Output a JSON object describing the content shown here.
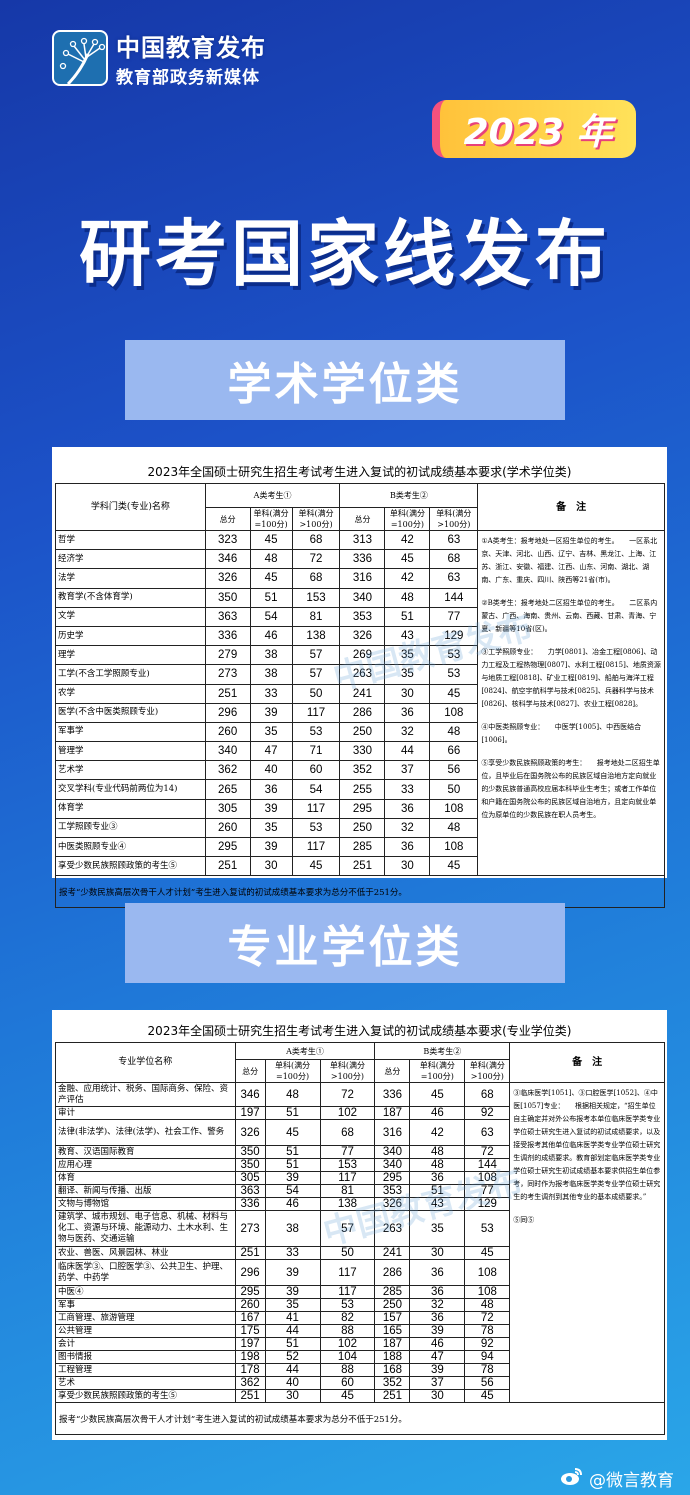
{
  "header": {
    "logo_line1": "中国教育发布",
    "logo_line2": "教育部政务新媒体",
    "year_badge": "2023 年",
    "title": "研考国家线发布"
  },
  "sections": {
    "academic": "学术学位类",
    "professional": "专业学位类"
  },
  "academic_table": {
    "title": "2023年全国硕士研究生招生考试考生进入复试的初试成绩基本要求(学术学位类)",
    "name_header": "学科门类(专业)名称",
    "group_a": "A类考生①",
    "group_b": "B类考生②",
    "sub_headers": [
      "总分",
      "单科(满分=100分)",
      "单科(满分>100分)",
      "总分",
      "单科(满分=100分)",
      "单科(满分>100分)"
    ],
    "notes_header": "备　注",
    "rows": [
      [
        "哲学",
        "323",
        "45",
        "68",
        "313",
        "42",
        "63"
      ],
      [
        "经济学",
        "346",
        "48",
        "72",
        "336",
        "45",
        "68"
      ],
      [
        "法学",
        "326",
        "45",
        "68",
        "316",
        "42",
        "63"
      ],
      [
        "教育学(不含体育学)",
        "350",
        "51",
        "153",
        "340",
        "48",
        "144"
      ],
      [
        "文学",
        "363",
        "54",
        "81",
        "353",
        "51",
        "77"
      ],
      [
        "历史学",
        "336",
        "46",
        "138",
        "326",
        "43",
        "129"
      ],
      [
        "理学",
        "279",
        "38",
        "57",
        "269",
        "35",
        "53"
      ],
      [
        "工学(不含工学照顾专业)",
        "273",
        "38",
        "57",
        "263",
        "35",
        "53"
      ],
      [
        "农学",
        "251",
        "33",
        "50",
        "241",
        "30",
        "45"
      ],
      [
        "医学(不含中医类照顾专业)",
        "296",
        "39",
        "117",
        "286",
        "36",
        "108"
      ],
      [
        "军事学",
        "260",
        "35",
        "53",
        "250",
        "32",
        "48"
      ],
      [
        "管理学",
        "340",
        "47",
        "71",
        "330",
        "44",
        "66"
      ],
      [
        "艺术学",
        "362",
        "40",
        "60",
        "352",
        "37",
        "56"
      ],
      [
        "交叉学科(专业代码前两位为14)",
        "265",
        "36",
        "54",
        "255",
        "33",
        "50"
      ],
      [
        "体育学",
        "305",
        "39",
        "117",
        "295",
        "36",
        "108"
      ],
      [
        "工学照顾专业③",
        "260",
        "35",
        "53",
        "250",
        "32",
        "48"
      ],
      [
        "中医类照顾专业④",
        "295",
        "39",
        "117",
        "285",
        "36",
        "108"
      ],
      [
        "享受少数民族照顾政策的考生⑤",
        "251",
        "30",
        "45",
        "251",
        "30",
        "45"
      ]
    ],
    "notes": [
      "①A类考生：报考地处一区招生单位的考生。　　一区系北京、天津、河北、山西、辽宁、吉林、黑龙江、上海、江苏、浙江、安徽、福建、江西、山东、河南、湖北、湖南、广东、重庆、四川、陕西等21省(市)。",
      "②B类考生：报考地处二区招生单位的考生。　　二区系内蒙古、广西、海南、贵州、云南、西藏、甘肃、青海、宁夏、新疆等10省(区)。",
      "③工学照顾专业：　　力学[0801]、冶金工程[0806]、动力工程及工程热物理[0807]、水利工程[0815]、地质资源与地质工程[0818]、矿业工程[0819]、船舶与海洋工程[0824]、航空宇航科学与技术[0825]、兵器科学与技术[0826]、核科学与技术[0827]、农业工程[0828]。",
      "④中医类照顾专业：　　中医学[1005]、中西医结合[1006]。",
      "⑤享受少数民族照顾政策的考生：　　报考地处二区招生单位，且毕业后在国务院公布的民族区域自治地方定向就业的少数民族普通高校应届本科毕业生考生；或者工作单位和户籍在国务院公布的民族区域自治地方，且定向就业单位为原单位的少数民族在职人员考生。"
    ],
    "footer": "报考“少数民族高层次骨干人才计划”考生进入复试的初试成绩基本要求为总分不低于251分。"
  },
  "professional_table": {
    "title": "2023年全国硕士研究生招生考试考生进入复试的初试成绩基本要求(专业学位类)",
    "name_header": "专业学位名称",
    "group_a": "A类考生①",
    "group_b": "B类考生②",
    "sub_headers": [
      "总分",
      "单科(满分=100分)",
      "单科(满分>100分)",
      "总分",
      "单科(满分=100分)",
      "单科(满分>100分)"
    ],
    "notes_header": "备　注",
    "rows": [
      [
        "金融、应用统计、税务、国际商务、保险、资产评估",
        "346",
        "48",
        "72",
        "336",
        "45",
        "68"
      ],
      [
        "审计",
        "197",
        "51",
        "102",
        "187",
        "46",
        "92"
      ],
      [
        "法律(非法学)、法律(法学)、社会工作、警务",
        "326",
        "45",
        "68",
        "316",
        "42",
        "63"
      ],
      [
        "教育、汉语国际教育",
        "350",
        "51",
        "77",
        "340",
        "48",
        "72"
      ],
      [
        "应用心理",
        "350",
        "51",
        "153",
        "340",
        "48",
        "144"
      ],
      [
        "体育",
        "305",
        "39",
        "117",
        "295",
        "36",
        "108"
      ],
      [
        "翻译、新闻与传播、出版",
        "363",
        "54",
        "81",
        "353",
        "51",
        "77"
      ],
      [
        "文物与博物馆",
        "336",
        "46",
        "138",
        "326",
        "43",
        "129"
      ],
      [
        "建筑学、城市规划、电子信息、机械、材料与化工、资源与环境、能源动力、土木水利、生物与医药、交通运输",
        "273",
        "38",
        "57",
        "263",
        "35",
        "53"
      ],
      [
        "农业、兽医、风景园林、林业",
        "251",
        "33",
        "50",
        "241",
        "30",
        "45"
      ],
      [
        "临床医学③、口腔医学③、公共卫生、护理、药学、中药学",
        "296",
        "39",
        "117",
        "286",
        "36",
        "108"
      ],
      [
        "中医④",
        "295",
        "39",
        "117",
        "285",
        "36",
        "108"
      ],
      [
        "军事",
        "260",
        "35",
        "53",
        "250",
        "32",
        "48"
      ],
      [
        "工商管理、旅游管理",
        "167",
        "41",
        "82",
        "157",
        "36",
        "72"
      ],
      [
        "公共管理",
        "175",
        "44",
        "88",
        "165",
        "39",
        "78"
      ],
      [
        "会计",
        "197",
        "51",
        "102",
        "187",
        "46",
        "92"
      ],
      [
        "图书情报",
        "198",
        "52",
        "104",
        "188",
        "47",
        "94"
      ],
      [
        "工程管理",
        "178",
        "44",
        "88",
        "168",
        "39",
        "78"
      ],
      [
        "艺术",
        "362",
        "40",
        "60",
        "352",
        "37",
        "56"
      ],
      [
        "享受少数民族照顾政策的考生⑤",
        "251",
        "30",
        "45",
        "251",
        "30",
        "45"
      ]
    ],
    "notes": [
      "③临床医学[1051]、③口腔医学[1052]、④中医[1057]专业：　　根据相关规定，“招生单位自主确定并对外公布报考本单位临床医学类专业学位硕士研究生进入复试的初试成绩要求，以及接受报考其他单位临床医学类专业学位硕士研究生调剂的成绩要求。教育部划定临床医学类专业学位硕士研究生初试成绩基本要求供招生单位参考，同时作为报考临床医学类专业学位硕士研究生的考生调剂到其他专业的基本成绩要求。”",
      "⑤同⑤"
    ],
    "footer": "报考“少数民族高层次骨干人才计划”考生进入复试的初试成绩基本要求为总分不低于251分。"
  },
  "watermark": "中国教育发布",
  "footer_brand": "@微言教育",
  "colors": {
    "background": "#1c52c8",
    "section_banner": "#9ab8f0",
    "badge": "#ffc23a"
  }
}
